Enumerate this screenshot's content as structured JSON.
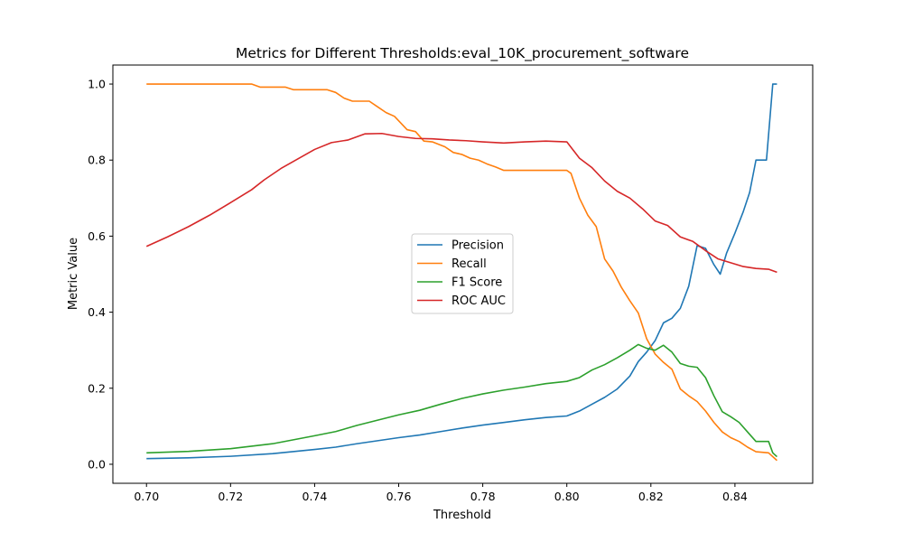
{
  "chart_data": {
    "type": "line",
    "title": "Metrics for Different Thresholds:eval_10K_procurement_software",
    "xlabel": "Threshold",
    "ylabel": "Metric Value",
    "xlim": [
      0.692,
      0.8585
    ],
    "ylim": [
      -0.05,
      1.05
    ],
    "xticks": [
      0.7,
      0.72,
      0.74,
      0.76,
      0.78,
      0.8,
      0.82,
      0.84
    ],
    "xtick_labels": [
      "0.70",
      "0.72",
      "0.74",
      "0.76",
      "0.78",
      "0.80",
      "0.82",
      "0.84"
    ],
    "yticks": [
      0.0,
      0.2,
      0.4,
      0.6,
      0.8,
      1.0
    ],
    "ytick_labels": [
      "0.0",
      "0.2",
      "0.4",
      "0.6",
      "0.8",
      "1.0"
    ],
    "grid": false,
    "legend_position": "center",
    "series": [
      {
        "name": "Precision",
        "color": "#1f77b4",
        "points": [
          [
            0.7,
            0.015
          ],
          [
            0.71,
            0.017
          ],
          [
            0.72,
            0.021
          ],
          [
            0.73,
            0.028
          ],
          [
            0.74,
            0.039
          ],
          [
            0.745,
            0.045
          ],
          [
            0.75,
            0.054
          ],
          [
            0.755,
            0.062
          ],
          [
            0.76,
            0.07
          ],
          [
            0.765,
            0.077
          ],
          [
            0.77,
            0.086
          ],
          [
            0.775,
            0.095
          ],
          [
            0.78,
            0.103
          ],
          [
            0.785,
            0.11
          ],
          [
            0.79,
            0.117
          ],
          [
            0.795,
            0.123
          ],
          [
            0.8,
            0.127
          ],
          [
            0.803,
            0.14
          ],
          [
            0.806,
            0.158
          ],
          [
            0.809,
            0.176
          ],
          [
            0.812,
            0.198
          ],
          [
            0.815,
            0.232
          ],
          [
            0.817,
            0.27
          ],
          [
            0.819,
            0.295
          ],
          [
            0.821,
            0.325
          ],
          [
            0.823,
            0.372
          ],
          [
            0.825,
            0.384
          ],
          [
            0.827,
            0.41
          ],
          [
            0.829,
            0.468
          ],
          [
            0.831,
            0.575
          ],
          [
            0.833,
            0.568
          ],
          [
            0.835,
            0.525
          ],
          [
            0.8365,
            0.5
          ],
          [
            0.838,
            0.555
          ],
          [
            0.84,
            0.608
          ],
          [
            0.842,
            0.665
          ],
          [
            0.8435,
            0.715
          ],
          [
            0.845,
            0.8
          ],
          [
            0.8475,
            0.8
          ],
          [
            0.849,
            1.0
          ],
          [
            0.85,
            1.0
          ]
        ]
      },
      {
        "name": "Recall",
        "color": "#ff7f0e",
        "points": [
          [
            0.7,
            1.0
          ],
          [
            0.725,
            1.0
          ],
          [
            0.727,
            0.992
          ],
          [
            0.733,
            0.992
          ],
          [
            0.735,
            0.985
          ],
          [
            0.743,
            0.985
          ],
          [
            0.745,
            0.978
          ],
          [
            0.747,
            0.963
          ],
          [
            0.749,
            0.955
          ],
          [
            0.753,
            0.955
          ],
          [
            0.755,
            0.94
          ],
          [
            0.757,
            0.925
          ],
          [
            0.759,
            0.915
          ],
          [
            0.762,
            0.88
          ],
          [
            0.764,
            0.875
          ],
          [
            0.766,
            0.85
          ],
          [
            0.768,
            0.848
          ],
          [
            0.771,
            0.835
          ],
          [
            0.773,
            0.82
          ],
          [
            0.775,
            0.815
          ],
          [
            0.777,
            0.805
          ],
          [
            0.779,
            0.8
          ],
          [
            0.781,
            0.79
          ],
          [
            0.783,
            0.782
          ],
          [
            0.785,
            0.773
          ],
          [
            0.8,
            0.773
          ],
          [
            0.801,
            0.765
          ],
          [
            0.803,
            0.7
          ],
          [
            0.805,
            0.655
          ],
          [
            0.807,
            0.625
          ],
          [
            0.809,
            0.54
          ],
          [
            0.811,
            0.508
          ],
          [
            0.813,
            0.465
          ],
          [
            0.815,
            0.43
          ],
          [
            0.817,
            0.398
          ],
          [
            0.819,
            0.33
          ],
          [
            0.821,
            0.29
          ],
          [
            0.823,
            0.268
          ],
          [
            0.825,
            0.25
          ],
          [
            0.827,
            0.198
          ],
          [
            0.829,
            0.18
          ],
          [
            0.831,
            0.165
          ],
          [
            0.833,
            0.14
          ],
          [
            0.835,
            0.11
          ],
          [
            0.837,
            0.085
          ],
          [
            0.839,
            0.07
          ],
          [
            0.841,
            0.06
          ],
          [
            0.843,
            0.045
          ],
          [
            0.845,
            0.033
          ],
          [
            0.848,
            0.03
          ],
          [
            0.8495,
            0.015
          ],
          [
            0.85,
            0.01
          ]
        ]
      },
      {
        "name": "F1 Score",
        "color": "#2ca02c",
        "points": [
          [
            0.7,
            0.03
          ],
          [
            0.71,
            0.034
          ],
          [
            0.72,
            0.041
          ],
          [
            0.73,
            0.054
          ],
          [
            0.74,
            0.075
          ],
          [
            0.745,
            0.086
          ],
          [
            0.75,
            0.102
          ],
          [
            0.755,
            0.116
          ],
          [
            0.76,
            0.13
          ],
          [
            0.765,
            0.142
          ],
          [
            0.77,
            0.158
          ],
          [
            0.775,
            0.173
          ],
          [
            0.78,
            0.185
          ],
          [
            0.785,
            0.195
          ],
          [
            0.79,
            0.203
          ],
          [
            0.795,
            0.212
          ],
          [
            0.8,
            0.218
          ],
          [
            0.803,
            0.228
          ],
          [
            0.806,
            0.248
          ],
          [
            0.809,
            0.262
          ],
          [
            0.812,
            0.28
          ],
          [
            0.815,
            0.3
          ],
          [
            0.817,
            0.315
          ],
          [
            0.819,
            0.305
          ],
          [
            0.821,
            0.3
          ],
          [
            0.823,
            0.313
          ],
          [
            0.825,
            0.295
          ],
          [
            0.827,
            0.265
          ],
          [
            0.829,
            0.258
          ],
          [
            0.831,
            0.255
          ],
          [
            0.833,
            0.228
          ],
          [
            0.835,
            0.18
          ],
          [
            0.837,
            0.138
          ],
          [
            0.839,
            0.125
          ],
          [
            0.841,
            0.11
          ],
          [
            0.843,
            0.085
          ],
          [
            0.845,
            0.06
          ],
          [
            0.848,
            0.06
          ],
          [
            0.849,
            0.03
          ],
          [
            0.85,
            0.02
          ]
        ]
      },
      {
        "name": "ROC AUC",
        "color": "#d62728",
        "points": [
          [
            0.7,
            0.573
          ],
          [
            0.705,
            0.598
          ],
          [
            0.71,
            0.625
          ],
          [
            0.715,
            0.655
          ],
          [
            0.72,
            0.688
          ],
          [
            0.725,
            0.722
          ],
          [
            0.728,
            0.748
          ],
          [
            0.732,
            0.778
          ],
          [
            0.736,
            0.803
          ],
          [
            0.74,
            0.828
          ],
          [
            0.744,
            0.846
          ],
          [
            0.748,
            0.853
          ],
          [
            0.752,
            0.869
          ],
          [
            0.756,
            0.87
          ],
          [
            0.76,
            0.862
          ],
          [
            0.764,
            0.857
          ],
          [
            0.768,
            0.856
          ],
          [
            0.772,
            0.853
          ],
          [
            0.776,
            0.851
          ],
          [
            0.78,
            0.848
          ],
          [
            0.785,
            0.845
          ],
          [
            0.79,
            0.848
          ],
          [
            0.795,
            0.85
          ],
          [
            0.8,
            0.848
          ],
          [
            0.803,
            0.805
          ],
          [
            0.806,
            0.78
          ],
          [
            0.809,
            0.745
          ],
          [
            0.812,
            0.718
          ],
          [
            0.815,
            0.7
          ],
          [
            0.818,
            0.672
          ],
          [
            0.821,
            0.64
          ],
          [
            0.824,
            0.628
          ],
          [
            0.827,
            0.598
          ],
          [
            0.83,
            0.586
          ],
          [
            0.833,
            0.562
          ],
          [
            0.836,
            0.54
          ],
          [
            0.839,
            0.53
          ],
          [
            0.842,
            0.52
          ],
          [
            0.845,
            0.515
          ],
          [
            0.848,
            0.513
          ],
          [
            0.85,
            0.505
          ]
        ]
      }
    ]
  }
}
